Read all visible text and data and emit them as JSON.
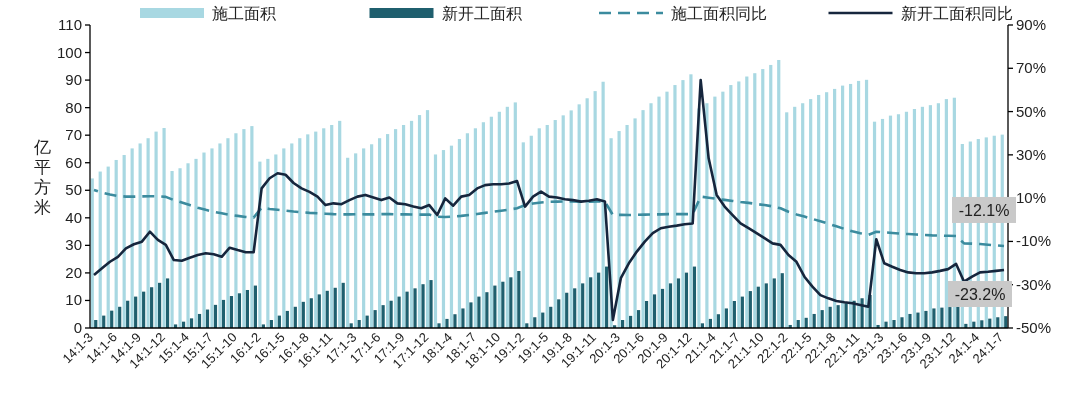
{
  "chart_data": {
    "type": "bar",
    "categories": [
      "14:1-3",
      null,
      null,
      "14:1-6",
      null,
      null,
      "14:1-9",
      null,
      null,
      "14:1-12",
      null,
      null,
      "15:1-4",
      null,
      null,
      "15:1-7",
      null,
      null,
      "15:1-10",
      null,
      null,
      "16:1-2",
      null,
      null,
      "16:1-5",
      null,
      null,
      "16:1-8",
      null,
      null,
      "16:1-11",
      null,
      null,
      "17:1-3",
      null,
      null,
      "17:1-6",
      null,
      null,
      "17:1-9",
      null,
      null,
      "17:1-12",
      null,
      null,
      "18:1-4",
      null,
      null,
      "18:1-7",
      null,
      null,
      "18:1-10",
      null,
      null,
      "19:1-2",
      null,
      null,
      "19:1-5",
      null,
      null,
      "19:1-8",
      null,
      null,
      "19:1-11",
      null,
      null,
      "20:1-3",
      null,
      null,
      "20:1-6",
      null,
      null,
      "20:1-9",
      null,
      null,
      "20:1-12",
      null,
      null,
      "21:1-4",
      null,
      null,
      "21:1-7",
      null,
      null,
      "21:1-10",
      null,
      null,
      "22:1-2",
      null,
      null,
      "22:1-5",
      null,
      null,
      "22:1-8",
      null,
      null,
      "22:1-11",
      null,
      null,
      "23:1-3",
      null,
      null,
      "23:1-6",
      null,
      null,
      "23:1-9",
      null,
      null,
      "23:1-12",
      null,
      null,
      "24:1-4",
      null,
      null,
      "24:1-7"
    ],
    "series": [
      {
        "name": "施工面积",
        "color": "#a8d8e2",
        "values": [
          54.3,
          56.8,
          58.6,
          61.0,
          62.8,
          65.2,
          67.0,
          68.9,
          71.3,
          72.6,
          57.0,
          58.0,
          59.8,
          61.4,
          63.7,
          65.2,
          67.0,
          68.9,
          70.7,
          72.2,
          73.3,
          60.4,
          61.4,
          63.0,
          65.2,
          67.0,
          68.9,
          70.3,
          71.3,
          72.5,
          73.7,
          75.2,
          61.8,
          63.4,
          65.2,
          66.7,
          68.9,
          70.4,
          72.2,
          73.7,
          75.2,
          77.3,
          79.1,
          63.0,
          64.6,
          66.2,
          68.6,
          70.7,
          72.5,
          74.7,
          76.7,
          78.5,
          80.3,
          81.9,
          67.4,
          69.8,
          72.5,
          73.7,
          75.5,
          77.2,
          79.0,
          81.2,
          83.4,
          86.0,
          89.4,
          68.9,
          71.5,
          73.7,
          76.1,
          79.1,
          81.6,
          84.0,
          85.8,
          88.2,
          90.0,
          92.1,
          79.7,
          81.6,
          84.0,
          85.8,
          88.2,
          89.5,
          91.3,
          92.5,
          94.0,
          95.5,
          97.3,
          78.3,
          80.3,
          81.6,
          83.1,
          84.6,
          85.6,
          86.8,
          88.0,
          88.6,
          89.7,
          90.1,
          74.9,
          75.9,
          77.1,
          77.6,
          78.5,
          79.5,
          80.3,
          80.9,
          81.6,
          83.1,
          83.6,
          66.8,
          67.7,
          68.6,
          69.2,
          69.8,
          70.2
        ]
      },
      {
        "name": "新开工面积",
        "color": "#1f5f6e",
        "values": [
          2.9,
          4.5,
          6.3,
          7.7,
          9.9,
          11.4,
          13.2,
          14.8,
          16.4,
          18.0,
          1.3,
          2.3,
          3.5,
          5.1,
          6.7,
          8.4,
          10.2,
          11.6,
          12.6,
          13.8,
          15.4,
          1.3,
          2.9,
          4.5,
          6.2,
          7.7,
          9.5,
          10.8,
          12.2,
          13.5,
          14.6,
          16.4,
          1.7,
          2.9,
          4.5,
          6.5,
          8.3,
          9.9,
          11.4,
          13.2,
          14.4,
          15.9,
          17.4,
          1.7,
          3.3,
          5.0,
          7.1,
          9.3,
          11.4,
          13.0,
          15.4,
          16.8,
          18.4,
          20.7,
          1.7,
          3.9,
          5.6,
          7.7,
          10.4,
          12.8,
          14.4,
          16.2,
          18.4,
          20.1,
          22.3,
          1.0,
          2.9,
          4.4,
          6.5,
          9.8,
          12.2,
          14.2,
          16.2,
          18.0,
          20.1,
          22.3,
          1.7,
          3.3,
          5.0,
          7.1,
          9.8,
          11.4,
          13.4,
          15.0,
          16.2,
          18.0,
          19.9,
          1.1,
          2.9,
          3.7,
          5.1,
          6.5,
          7.7,
          8.3,
          9.0,
          9.9,
          10.8,
          12.0,
          1.1,
          2.3,
          2.9,
          3.9,
          5.1,
          5.6,
          6.2,
          7.1,
          7.4,
          7.6,
          7.8,
          1.5,
          2.3,
          2.8,
          3.4,
          3.9,
          4.3
        ]
      },
      {
        "name": "施工面积同比",
        "type": "line",
        "axis": "y2",
        "line_style": "dashed",
        "color": "#3b8b9e",
        "values": [
          13.8,
          12.6,
          11.7,
          11.0,
          10.7,
          10.7,
          10.8,
          10.9,
          10.9,
          10.6,
          9.1,
          8.0,
          6.8,
          5.6,
          4.6,
          3.7,
          3.0,
          2.3,
          1.8,
          1.3,
          1.0,
          5.6,
          5.0,
          4.6,
          4.2,
          3.8,
          3.5,
          3.2,
          3.0,
          2.8,
          2.6,
          2.5,
          2.5,
          2.6,
          2.5,
          2.5,
          2.6,
          2.6,
          2.5,
          2.5,
          2.4,
          2.4,
          2.4,
          1.4,
          1.3,
          1.5,
          1.8,
          2.2,
          2.7,
          3.2,
          3.7,
          4.2,
          4.7,
          5.3,
          6.8,
          7.5,
          8.0,
          8.3,
          8.4,
          8.5,
          8.5,
          8.4,
          8.4,
          8.5,
          8.4,
          2.2,
          2.3,
          2.2,
          2.3,
          2.4,
          2.5,
          2.5,
          2.6,
          2.6,
          2.6,
          2.6,
          10.7,
          10.2,
          9.7,
          9.2,
          8.7,
          8.2,
          7.8,
          7.3,
          6.8,
          6.2,
          5.3,
          3.7,
          2.5,
          1.5,
          0.4,
          -0.7,
          -1.8,
          -3.0,
          -4.2,
          -5.3,
          -6.2,
          -7.0,
          -5.5,
          -5.8,
          -6.1,
          -6.4,
          -6.6,
          -6.8,
          -7.0,
          -7.2,
          -7.3,
          -7.4,
          -7.5,
          -10.9,
          -11.0,
          -11.2,
          -11.5,
          -11.8,
          -12.1
        ]
      },
      {
        "name": "新开工面积同比",
        "type": "line",
        "axis": "y2",
        "line_style": "solid",
        "color": "#16263d",
        "values": [
          -25.5,
          -22.4,
          -19.4,
          -17.1,
          -13.2,
          -11.3,
          -10.1,
          -5.5,
          -9.3,
          -11.6,
          -18.6,
          -18.9,
          -17.5,
          -16.3,
          -15.5,
          -15.9,
          -17.1,
          -12.9,
          -14.0,
          -15.0,
          -15.0,
          14.5,
          19.2,
          21.5,
          20.8,
          17.0,
          14.5,
          12.9,
          10.7,
          6.8,
          7.6,
          7.2,
          9.1,
          10.7,
          11.5,
          10.3,
          9.1,
          10.3,
          7.6,
          7.2,
          6.1,
          5.3,
          6.8,
          2.2,
          9.9,
          6.5,
          10.7,
          11.5,
          14.5,
          16.0,
          16.4,
          16.4,
          16.8,
          17.9,
          6.1,
          10.7,
          13.0,
          10.7,
          10.3,
          9.5,
          9.1,
          8.4,
          8.8,
          9.5,
          8.5,
          -46.3,
          -27.0,
          -20.1,
          -14.7,
          -10.1,
          -6.2,
          -3.9,
          -3.2,
          -2.7,
          -2.1,
          -1.7,
          64.6,
          28.4,
          11.5,
          6.1,
          2.2,
          -1.7,
          -3.9,
          -6.2,
          -8.5,
          -10.9,
          -11.6,
          -16.3,
          -19.4,
          -26.3,
          -30.9,
          -34.8,
          -36.3,
          -37.5,
          -38.1,
          -38.6,
          -39.4,
          -40.2,
          -9.0,
          -20.1,
          -21.7,
          -23.2,
          -24.3,
          -24.7,
          -24.7,
          -24.3,
          -23.6,
          -22.8,
          -20.4,
          -28.6,
          -26.3,
          -24.3,
          -24.0,
          -23.6,
          -23.2
        ]
      }
    ],
    "ylabel": "亿平方米",
    "ylim": [
      0,
      110
    ],
    "yticks": [
      0,
      10,
      20,
      30,
      40,
      50,
      60,
      70,
      80,
      90,
      100,
      110
    ],
    "y2lim": [
      -50,
      90
    ],
    "y2ticks": [
      {
        "value": -50,
        "label": "-50%"
      },
      {
        "value": -30,
        "label": "-30%"
      },
      {
        "value": -10,
        "label": "-10%"
      },
      {
        "value": 10,
        "label": "10%"
      },
      {
        "value": 30,
        "label": "30%"
      },
      {
        "value": 50,
        "label": "50%"
      },
      {
        "value": 70,
        "label": "70%"
      },
      {
        "value": 90,
        "label": "90%"
      }
    ],
    "legend": "top",
    "annotations": [
      "-12.1%",
      "-23.2%"
    ]
  }
}
